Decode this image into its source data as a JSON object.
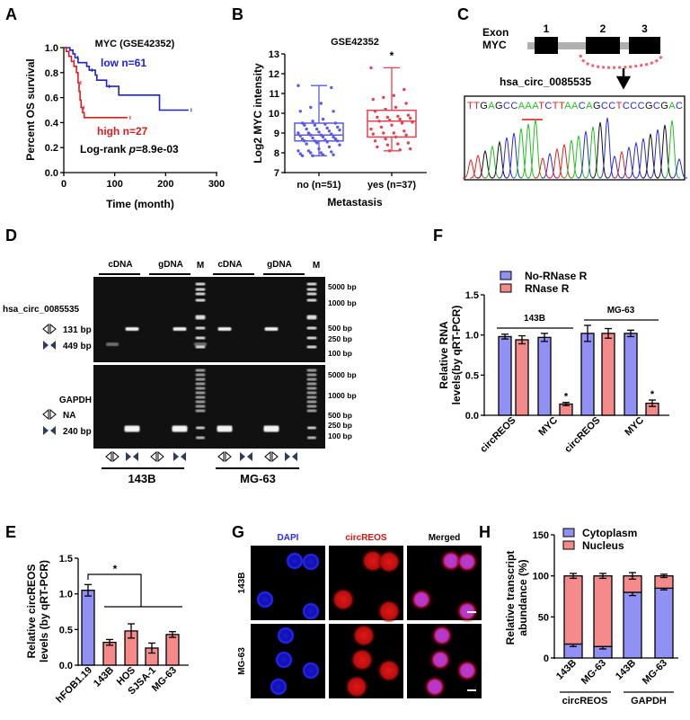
{
  "panel_labels": [
    "A",
    "B",
    "C",
    "D",
    "E",
    "F",
    "G",
    "H"
  ],
  "colors": {
    "blue_line": "#1f1fd6",
    "red_line": "#e01b1b",
    "bar_blue": "#9090f5",
    "bar_red": "#f58a8a",
    "box_blue": "#5a5ae6",
    "box_red": "#e8424f",
    "dapi": "#2a2aff",
    "circ": "#e01010"
  },
  "chart_data": [
    {
      "panel": "A",
      "type": "line",
      "title": "MYC  (GSE42352)",
      "xlabel": "Time (month)",
      "ylabel": "Percent OS survival",
      "xlim": [
        0,
        300
      ],
      "ylim": [
        0,
        1
      ],
      "xticks": [
        "0",
        "100",
        "200",
        "300"
      ],
      "yticks": [
        "0.0",
        "0.2",
        "0.4",
        "0.6",
        "0.8",
        "1.0"
      ],
      "grid": false,
      "series": [
        {
          "name": "low  n=61",
          "color": "#1f1fd6",
          "points": [
            [
              0,
              1
            ],
            [
              12,
              0.98
            ],
            [
              18,
              0.95
            ],
            [
              22,
              0.92
            ],
            [
              28,
              0.88
            ],
            [
              45,
              0.85
            ],
            [
              50,
              0.82
            ],
            [
              62,
              0.78
            ],
            [
              65,
              0.74
            ],
            [
              84,
              0.69
            ],
            [
              108,
              0.62
            ],
            [
              188,
              0.5
            ],
            [
              245,
              0.5
            ]
          ]
        },
        {
          "name": "high  n=27",
          "color": "#e01b1b",
          "points": [
            [
              0,
              1
            ],
            [
              5,
              0.97
            ],
            [
              10,
              0.93
            ],
            [
              15,
              0.89
            ],
            [
              20,
              0.85
            ],
            [
              25,
              0.8
            ],
            [
              28,
              0.72
            ],
            [
              30,
              0.65
            ],
            [
              32,
              0.58
            ],
            [
              34,
              0.52
            ],
            [
              37,
              0.48
            ],
            [
              40,
              0.44
            ],
            [
              125,
              0.44
            ]
          ]
        }
      ],
      "annotation": {
        "prefix": "Log-rank ",
        "italic": "p",
        "suffix": "=8.9e-03"
      }
    },
    {
      "panel": "B",
      "type": "box",
      "title": "GSE42352",
      "xlabel": "Metastasis",
      "ylabel": "Log2 MYC intensity",
      "ylim": [
        7,
        13
      ],
      "yticks": [
        "7",
        "8",
        "9",
        "10",
        "11",
        "12",
        "13"
      ],
      "categories": [
        "no (n=51)",
        "yes (n=37)"
      ],
      "significance": "*",
      "series": [
        {
          "category": "no (n=51)",
          "color": "#5a5ae6",
          "whisker_low": 7.85,
          "q1": 8.6,
          "median": 8.9,
          "q3": 9.5,
          "whisker_high": 11.4,
          "points": [
            11.4,
            11.3,
            10.5,
            10.3,
            10.1,
            10.1,
            9.7,
            9.6,
            9.5,
            9.5,
            9.45,
            9.4,
            9.4,
            9.3,
            9.25,
            9.2,
            9.2,
            9.15,
            9.1,
            9.05,
            9.0,
            9.0,
            8.95,
            8.9,
            8.9,
            8.85,
            8.8,
            8.8,
            8.75,
            8.7,
            8.7,
            8.65,
            8.6,
            8.6,
            8.6,
            8.55,
            8.5,
            8.45,
            8.4,
            8.3,
            8.2,
            8.1,
            8.1,
            8.05,
            8.0,
            8.0,
            7.95,
            7.9,
            7.9,
            7.85,
            7.85
          ]
        },
        {
          "category": "yes (n=37)",
          "color": "#e8424f",
          "whisker_low": 8.1,
          "q1": 8.8,
          "median": 9.6,
          "q3": 10.15,
          "whisker_high": 12.3,
          "points": [
            12.3,
            11.2,
            10.9,
            10.8,
            10.7,
            10.5,
            10.3,
            10.2,
            10.1,
            9.9,
            9.85,
            9.8,
            9.8,
            9.75,
            9.7,
            9.65,
            9.6,
            9.55,
            9.5,
            9.4,
            9.3,
            9.2,
            9.1,
            9.0,
            9.0,
            8.95,
            8.9,
            8.8,
            8.7,
            8.6,
            8.5,
            8.45,
            8.4,
            8.3,
            8.2,
            8.15,
            8.1
          ]
        }
      ]
    },
    {
      "panel": "F",
      "type": "bar",
      "ylabel_lines": [
        "Relative RNA",
        "levels(by qRT-PCR)"
      ],
      "ylim": [
        0,
        1.5
      ],
      "yticks": [
        "0.0",
        "0.5",
        "1.0",
        "1.5"
      ],
      "categories": [
        "circREOS",
        "MYC",
        "circREOS",
        "MYC"
      ],
      "groups": [
        "143B",
        "MG-63"
      ],
      "legend": "top-left",
      "series": [
        {
          "name": "No-RNase R",
          "color": "#9090f5",
          "values": [
            0.98,
            0.97,
            1.02,
            1.02
          ],
          "errors": [
            0.03,
            0.05,
            0.1,
            0.04
          ]
        },
        {
          "name": "RNase R",
          "color": "#f58a8a",
          "values": [
            0.94,
            0.14,
            1.02,
            0.15
          ],
          "errors": [
            0.05,
            0.02,
            0.06,
            0.04
          ]
        }
      ],
      "significance": [
        "",
        "*",
        "",
        "*"
      ]
    },
    {
      "panel": "E",
      "type": "bar",
      "ylabel_lines": [
        "Relative circREOS",
        "levels (by qRT-PCR)"
      ],
      "ylim": [
        0,
        1.5
      ],
      "yticks": [
        "0.0",
        "0.5",
        "1.0",
        "1.5"
      ],
      "categories": [
        "hFOB1.19",
        "143B",
        "HOS",
        "SJSA-1",
        "MG-63"
      ],
      "values": [
        1.05,
        0.32,
        0.48,
        0.24,
        0.43
      ],
      "errors": [
        0.08,
        0.04,
        0.1,
        0.07,
        0.04
      ],
      "bar_colors": [
        "#9090f5",
        "#f58a8a",
        "#f58a8a",
        "#f58a8a",
        "#f58a8a"
      ],
      "significance": "*"
    },
    {
      "panel": "H",
      "type": "bar",
      "stacked": true,
      "ylabel_lines": [
        "Relative transcript",
        "abundance (%)"
      ],
      "ylim": [
        0,
        150
      ],
      "yticks": [
        "0",
        "50",
        "100",
        "150"
      ],
      "categories": [
        "143B",
        "MG-63",
        "143B",
        "MG-63"
      ],
      "groups": [
        "circREOS",
        "GAPDH"
      ],
      "legend": "top-left",
      "series": [
        {
          "name": "Cytoplasm",
          "color": "#9090f5",
          "values": [
            17,
            14,
            80,
            85
          ],
          "errors": [
            3,
            3,
            4,
            2
          ]
        },
        {
          "name": "Nucleus",
          "color": "#f58a8a",
          "values": [
            83,
            86,
            20,
            15
          ],
          "errors": [
            3,
            3,
            4,
            2
          ]
        }
      ]
    }
  ],
  "panel_c": {
    "exon_label": "Exon",
    "gene_label": "MYC",
    "exons": [
      "1",
      "2",
      "3"
    ],
    "circ_name": "hsa_circ_0085535",
    "sequence": "TTGAGCCAAATCTTAACAGCCTCCCGCGAC",
    "junction": "AACA",
    "base_colors": {
      "T": "#e82020",
      "G": "#111111",
      "A": "#22c022",
      "C": "#2a2ad8"
    }
  },
  "panel_d": {
    "top_gene": "hsa_circ_0085535",
    "top_sizes": [
      "131 bp",
      "449 bp"
    ],
    "bottom_gene": "GAPDH",
    "bottom_sizes": [
      "NA",
      "240 bp"
    ],
    "lane_groups": [
      "cDNA",
      "gDNA",
      "cDNA",
      "gDNA"
    ],
    "marker": "M",
    "ladder": [
      "5000 bp",
      "1000 bp",
      "500 bp",
      "250 bp",
      "100 bp"
    ],
    "cell_lines": [
      "143B",
      "MG-63"
    ]
  },
  "panel_g": {
    "channels": [
      "DAPI",
      "circREOS",
      "Merged"
    ],
    "channel_colors": [
      "#2a2aff",
      "#e01010",
      "#000000"
    ],
    "rows": [
      "143B",
      "MG-63"
    ]
  }
}
